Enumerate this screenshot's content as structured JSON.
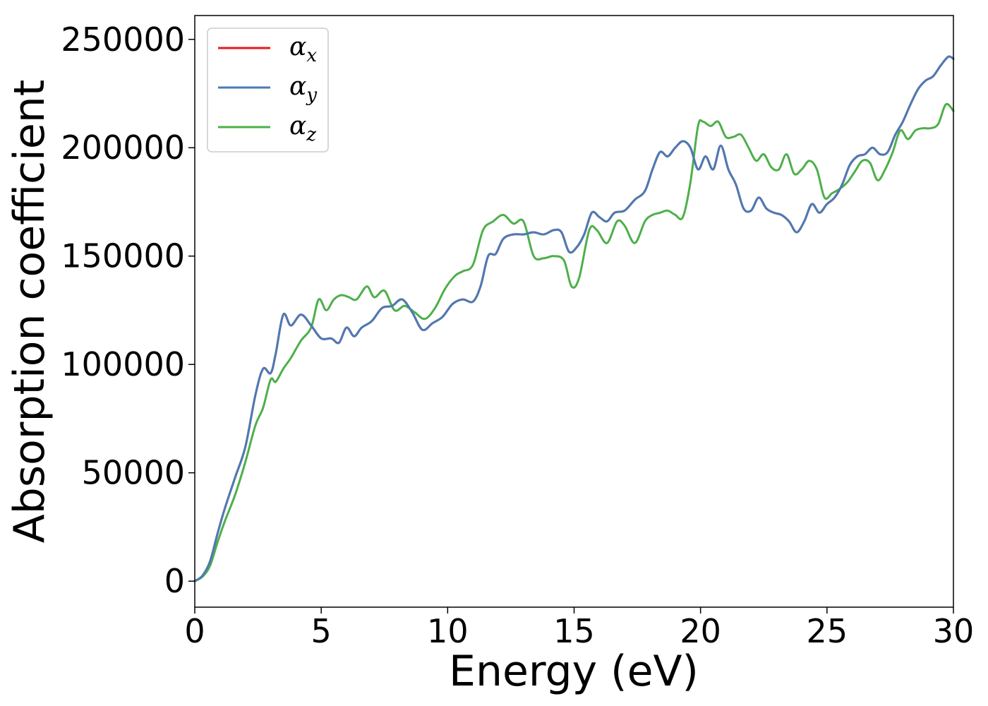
{
  "chart_data": {
    "type": "line",
    "title": "",
    "xlabel": "Energy (eV)",
    "ylabel": "Absorption coefficient",
    "xlim": [
      0,
      30
    ],
    "ylim": [
      -12000,
      261000
    ],
    "xticks": [
      0,
      5,
      10,
      15,
      20,
      25,
      30
    ],
    "yticks": [
      0,
      50000,
      100000,
      150000,
      200000,
      250000
    ],
    "xtick_labels": [
      "0",
      "5",
      "10",
      "15",
      "20",
      "25",
      "30"
    ],
    "ytick_labels": [
      "0",
      "50000",
      "100000",
      "150000",
      "200000",
      "250000"
    ],
    "grid": false,
    "legend_position": "top-left",
    "series": [
      {
        "name": "α_x",
        "symbol": "α",
        "subscript": "x",
        "color": "#e41a1c",
        "x": [
          0,
          0.3,
          0.6,
          0.9,
          1.2,
          1.6,
          2.0,
          2.4,
          2.7,
          3.0,
          3.2,
          3.5,
          3.8,
          4.2,
          4.6,
          5.0,
          5.4,
          5.7,
          6.0,
          6.3,
          6.6,
          7.0,
          7.4,
          7.8,
          8.2,
          8.6,
          9.0,
          9.4,
          9.8,
          10.2,
          10.6,
          11.0,
          11.3,
          11.6,
          11.9,
          12.2,
          12.6,
          13.0,
          13.4,
          13.8,
          14.2,
          14.5,
          14.8,
          15.1,
          15.4,
          15.7,
          16.0,
          16.3,
          16.6,
          17.0,
          17.4,
          17.8,
          18.1,
          18.4,
          18.7,
          19.0,
          19.3,
          19.6,
          19.9,
          20.2,
          20.5,
          20.8,
          21.1,
          21.4,
          21.7,
          22.0,
          22.3,
          22.6,
          22.9,
          23.2,
          23.5,
          23.8,
          24.1,
          24.4,
          24.7,
          25.0,
          25.3,
          25.6,
          25.9,
          26.2,
          26.5,
          26.8,
          27.1,
          27.4,
          27.7,
          28.0,
          28.3,
          28.6,
          28.9,
          29.2,
          29.5,
          29.8,
          30.0
        ],
        "values": [
          0,
          2500,
          9000,
          22000,
          34000,
          48000,
          62000,
          86000,
          98000,
          96000,
          105000,
          123000,
          118000,
          123000,
          118000,
          112000,
          112000,
          110000,
          117000,
          113000,
          117000,
          120000,
          126000,
          127000,
          130000,
          124000,
          116000,
          119000,
          122000,
          128000,
          130000,
          129000,
          136000,
          150000,
          151000,
          158000,
          160000,
          160000,
          161000,
          160000,
          162000,
          161000,
          152000,
          154000,
          160000,
          170000,
          168000,
          166000,
          170000,
          171000,
          176000,
          180000,
          190000,
          198000,
          196000,
          200000,
          203000,
          200000,
          190000,
          196000,
          190000,
          201000,
          190000,
          183000,
          172000,
          171000,
          177000,
          172000,
          170000,
          169000,
          166000,
          161000,
          166000,
          174000,
          170000,
          174000,
          177000,
          183000,
          192000,
          196000,
          197000,
          200000,
          197000,
          198000,
          206000,
          212000,
          220000,
          227000,
          231000,
          233000,
          238000,
          242000,
          241000
        ]
      },
      {
        "name": "α_y",
        "symbol": "α",
        "subscript": "y",
        "color": "#4a7bb5",
        "x": [
          0,
          0.3,
          0.6,
          0.9,
          1.2,
          1.6,
          2.0,
          2.4,
          2.7,
          3.0,
          3.2,
          3.5,
          3.8,
          4.2,
          4.6,
          5.0,
          5.4,
          5.7,
          6.0,
          6.3,
          6.6,
          7.0,
          7.4,
          7.8,
          8.2,
          8.6,
          9.0,
          9.4,
          9.8,
          10.2,
          10.6,
          11.0,
          11.3,
          11.6,
          11.9,
          12.2,
          12.6,
          13.0,
          13.4,
          13.8,
          14.2,
          14.5,
          14.8,
          15.1,
          15.4,
          15.7,
          16.0,
          16.3,
          16.6,
          17.0,
          17.4,
          17.8,
          18.1,
          18.4,
          18.7,
          19.0,
          19.3,
          19.6,
          19.9,
          20.2,
          20.5,
          20.8,
          21.1,
          21.4,
          21.7,
          22.0,
          22.3,
          22.6,
          22.9,
          23.2,
          23.5,
          23.8,
          24.1,
          24.4,
          24.7,
          25.0,
          25.3,
          25.6,
          25.9,
          26.2,
          26.5,
          26.8,
          27.1,
          27.4,
          27.7,
          28.0,
          28.3,
          28.6,
          28.9,
          29.2,
          29.5,
          29.8,
          30.0
        ],
        "values": [
          0,
          2500,
          9000,
          22000,
          34000,
          48000,
          62000,
          86000,
          98000,
          96000,
          105000,
          123000,
          118000,
          123000,
          118000,
          112000,
          112000,
          110000,
          117000,
          113000,
          117000,
          120000,
          126000,
          127000,
          130000,
          124000,
          116000,
          119000,
          122000,
          128000,
          130000,
          129000,
          136000,
          150000,
          151000,
          158000,
          160000,
          160000,
          161000,
          160000,
          162000,
          161000,
          152000,
          154000,
          160000,
          170000,
          168000,
          166000,
          170000,
          171000,
          176000,
          180000,
          190000,
          198000,
          196000,
          200000,
          203000,
          200000,
          190000,
          196000,
          190000,
          201000,
          190000,
          183000,
          172000,
          171000,
          177000,
          172000,
          170000,
          169000,
          166000,
          161000,
          166000,
          174000,
          170000,
          174000,
          177000,
          183000,
          192000,
          196000,
          197000,
          200000,
          197000,
          198000,
          206000,
          212000,
          220000,
          227000,
          231000,
          233000,
          238000,
          242000,
          241000
        ]
      },
      {
        "name": "α_z",
        "symbol": "α",
        "subscript": "z",
        "color": "#4daf4a",
        "x": [
          0,
          0.3,
          0.6,
          0.9,
          1.2,
          1.6,
          2.0,
          2.4,
          2.7,
          3.0,
          3.2,
          3.5,
          3.8,
          4.2,
          4.6,
          4.9,
          5.2,
          5.5,
          5.8,
          6.1,
          6.4,
          6.8,
          7.1,
          7.5,
          7.9,
          8.3,
          8.7,
          9.1,
          9.5,
          9.9,
          10.3,
          10.6,
          11.0,
          11.4,
          11.8,
          12.2,
          12.6,
          13.0,
          13.4,
          13.8,
          14.2,
          14.6,
          14.9,
          15.2,
          15.6,
          15.9,
          16.3,
          16.7,
          17.0,
          17.4,
          17.8,
          18.1,
          18.4,
          18.7,
          19.0,
          19.3,
          19.6,
          19.9,
          20.1,
          20.4,
          20.7,
          21.0,
          21.3,
          21.6,
          21.9,
          22.2,
          22.5,
          22.8,
          23.1,
          23.4,
          23.7,
          24.0,
          24.3,
          24.6,
          24.9,
          25.2,
          25.5,
          25.8,
          26.1,
          26.4,
          26.7,
          27.0,
          27.3,
          27.6,
          27.9,
          28.2,
          28.5,
          28.8,
          29.1,
          29.4,
          29.7,
          30.0
        ],
        "values": [
          0,
          2000,
          7000,
          18000,
          28000,
          40000,
          55000,
          72000,
          80000,
          93000,
          92000,
          98000,
          103000,
          111000,
          117000,
          130000,
          125000,
          130000,
          132000,
          131000,
          130000,
          136000,
          131000,
          134000,
          125000,
          127000,
          124000,
          121000,
          126000,
          135000,
          141000,
          143000,
          146000,
          162000,
          166000,
          169000,
          165000,
          166000,
          150000,
          149000,
          150000,
          148000,
          136000,
          140000,
          162000,
          162000,
          156000,
          166000,
          164000,
          156000,
          166000,
          169000,
          170000,
          171000,
          169000,
          168000,
          184000,
          210000,
          212000,
          210000,
          212000,
          205000,
          205000,
          206000,
          200000,
          194000,
          197000,
          191000,
          190000,
          197000,
          188000,
          190000,
          194000,
          190000,
          177000,
          179000,
          181000,
          184000,
          189000,
          194000,
          193000,
          185000,
          190000,
          198000,
          208000,
          204000,
          208000,
          209000,
          209000,
          211000,
          220000,
          217000
        ]
      }
    ]
  }
}
